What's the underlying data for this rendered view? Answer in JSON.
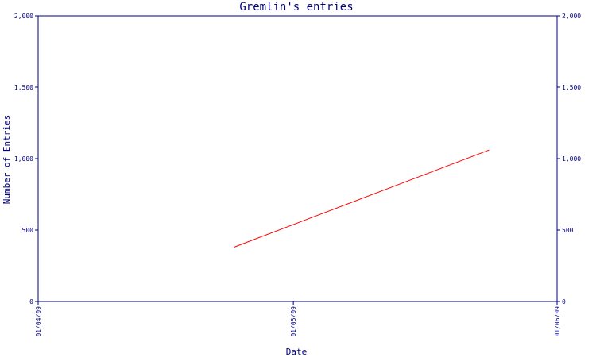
{
  "chart_data": {
    "type": "line",
    "title": "Gremlin's entries",
    "xlabel": "Date",
    "ylabel": "Number of Entries",
    "x_tick_labels": [
      "01/04/09",
      "01/05/09",
      "01/06/09"
    ],
    "y_tick_labels": [
      "0",
      "500",
      "1,000",
      "1,500",
      "2,000"
    ],
    "y_ticks": [
      0,
      500,
      1000,
      1500,
      2000
    ],
    "ylim": [
      0,
      2000
    ],
    "xlim": [
      "2009-04-01",
      "2009-06-01"
    ],
    "series": [
      {
        "color": "#ff0000",
        "points": [
          {
            "x": "2009-04-24",
            "y": 380
          },
          {
            "x": "2009-05-24",
            "y": 1060
          }
        ]
      }
    ],
    "grid": false,
    "y_axis_right": true
  },
  "colors": {
    "axis": "#000080",
    "series": "#ff0000",
    "background": "#ffffff"
  }
}
